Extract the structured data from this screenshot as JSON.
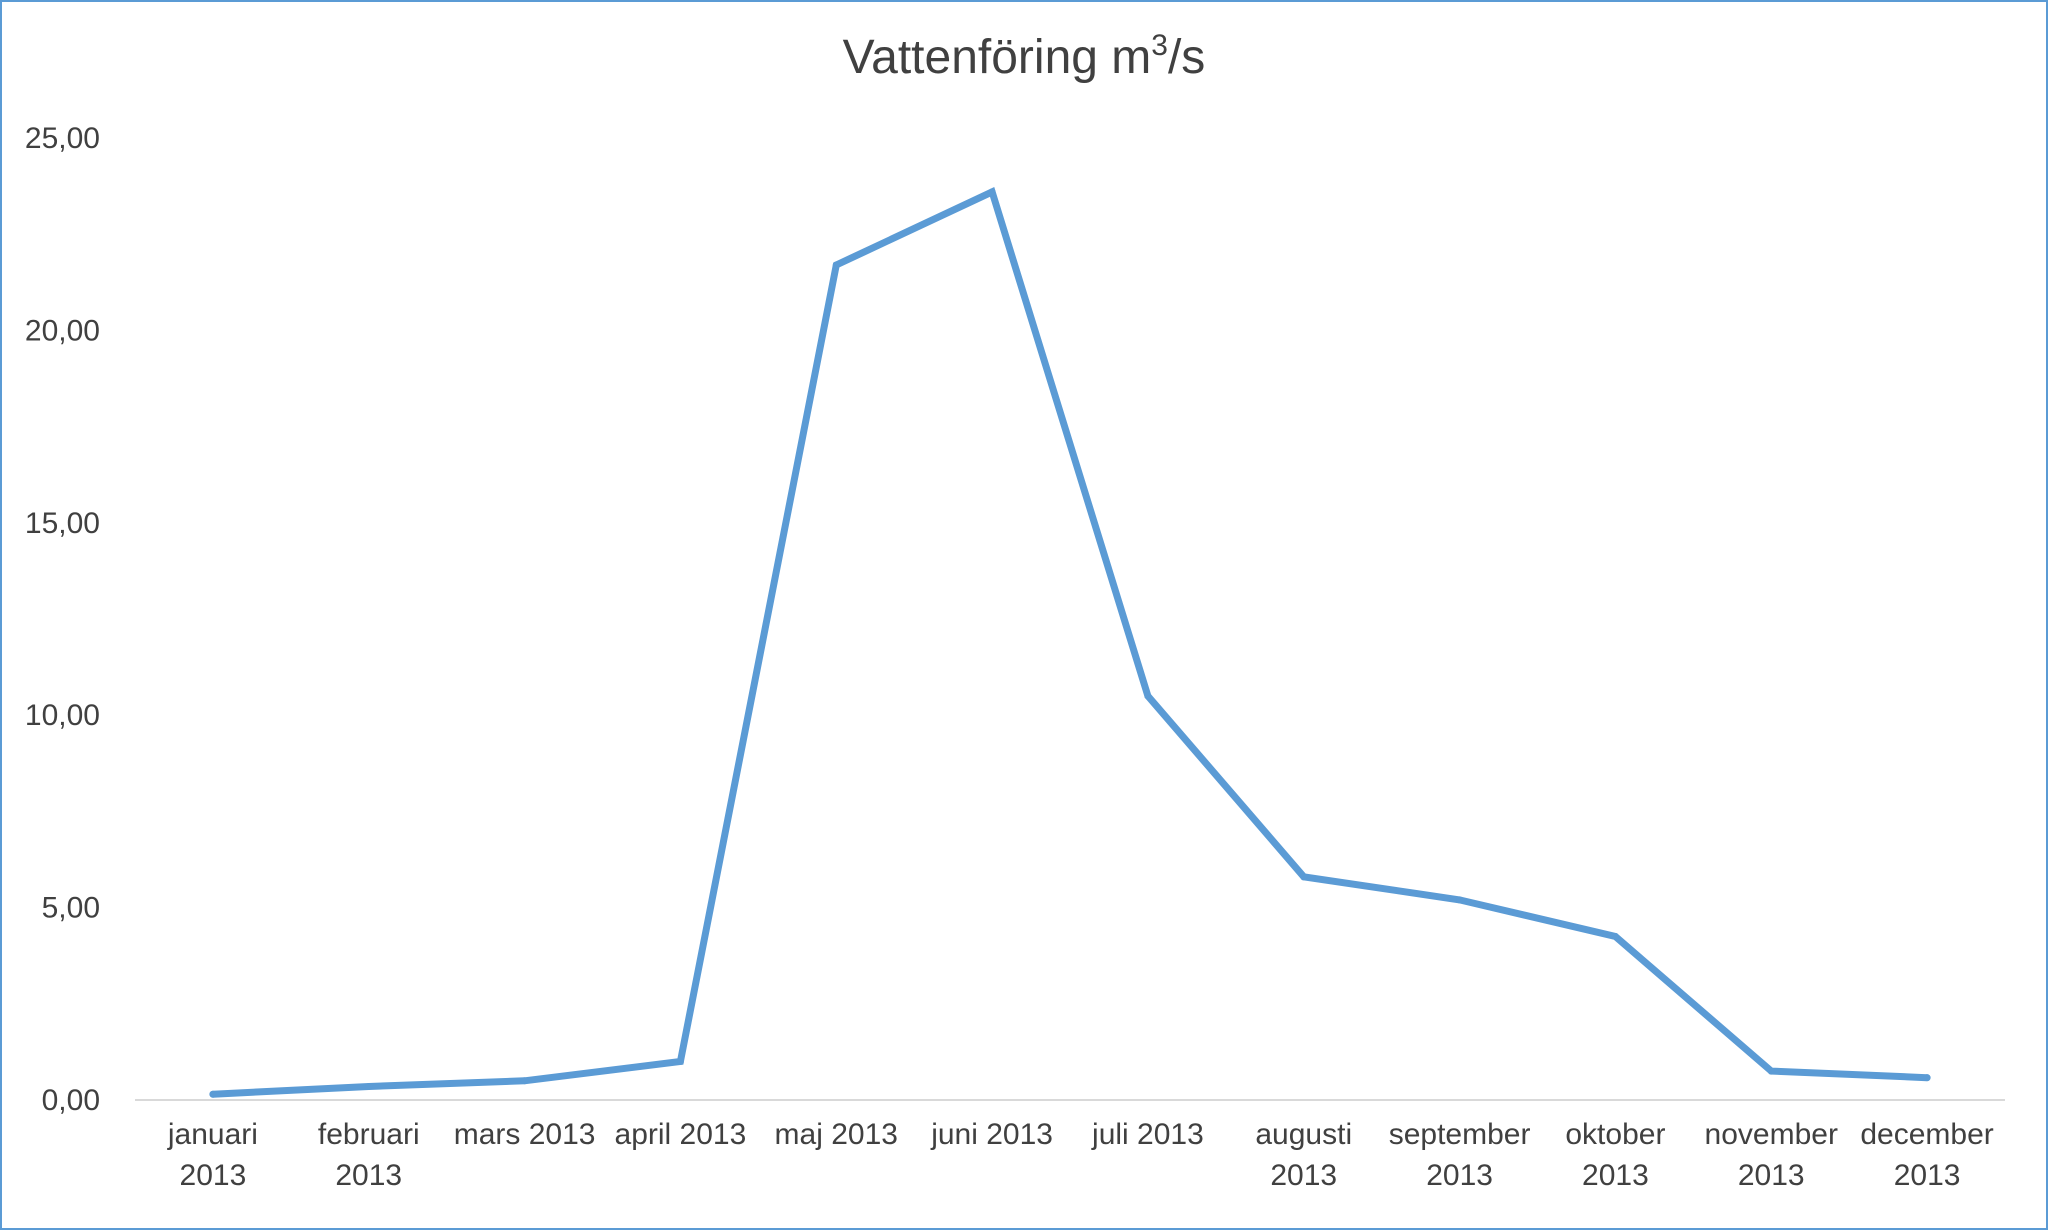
{
  "chart_data": {
    "type": "line",
    "title": "Vattenföring m³/s",
    "title_parts": {
      "main": "Vattenföring m",
      "sup": "3",
      "after": "/s"
    },
    "categories": [
      [
        "januari",
        "2013"
      ],
      [
        "februari",
        "2013"
      ],
      [
        "mars 2013"
      ],
      [
        "april 2013"
      ],
      [
        "maj 2013"
      ],
      [
        "juni 2013"
      ],
      [
        "juli 2013"
      ],
      [
        "augusti",
        "2013"
      ],
      [
        "september",
        "2013"
      ],
      [
        "oktober",
        "2013"
      ],
      [
        "november",
        "2013"
      ],
      [
        "december",
        "2013"
      ]
    ],
    "values": [
      0.15,
      0.35,
      0.5,
      1.0,
      21.7,
      23.6,
      10.5,
      5.8,
      5.2,
      4.25,
      0.75,
      0.58
    ],
    "ylim": [
      0,
      25
    ],
    "yticks": [
      "0,00",
      "5,00",
      "10,00",
      "15,00",
      "20,00",
      "25,00"
    ],
    "grid": false,
    "colors": {
      "line": "#5b9bd5",
      "axis": "#d9d9d9",
      "text": "#404040",
      "border": "#5b9bd5"
    }
  }
}
